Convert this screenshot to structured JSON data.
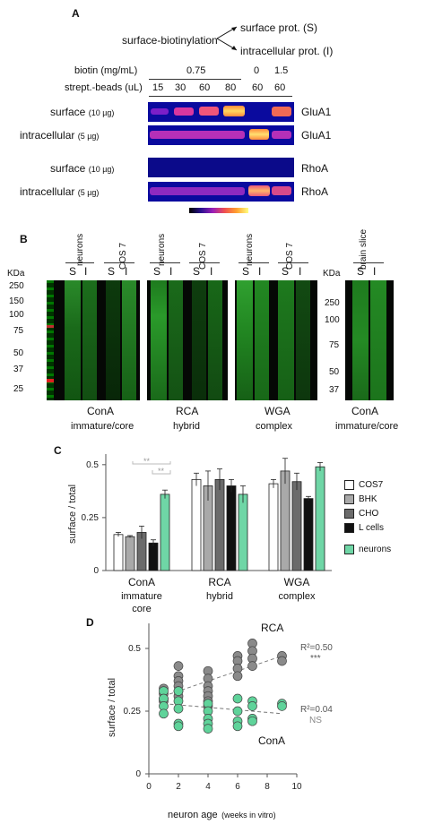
{
  "panelA": {
    "letter": "A",
    "scheme_left": "surface-biotinylation",
    "scheme_up": "surface prot. (S)",
    "scheme_down": "intracellular prot. (I)",
    "biotin_label": "biotin (mg/mL)",
    "biotin_values": [
      "0.75",
      "0",
      "1.5"
    ],
    "beads_label": "strept.-beads (uL)",
    "beads_values": [
      "15",
      "30",
      "60",
      "80",
      "60",
      "60"
    ],
    "rows": [
      {
        "label": "surface",
        "amount": "(10 µg)",
        "protein": "GluA1"
      },
      {
        "label": "intracellular",
        "amount": "(5 µg)",
        "protein": "GluA1"
      },
      {
        "label": "surface",
        "amount": "(10 µg)",
        "protein": "RhoA"
      },
      {
        "label": "intracellular",
        "amount": "(5 µg)",
        "protein": "RhoA"
      }
    ]
  },
  "panelB": {
    "letter": "B",
    "kda_label": "KDa",
    "left_markers": [
      "250",
      "150",
      "100",
      "75",
      "50",
      "37",
      "25"
    ],
    "right_markers": [
      "250",
      "100",
      "75",
      "50",
      "37"
    ],
    "headers": [
      "neurons",
      "COS 7",
      "neurons",
      "COS 7",
      "neurons",
      "COS 7",
      "brain slice"
    ],
    "lane_s": "S",
    "lane_i": "I",
    "groups": [
      {
        "lectin": "ConA",
        "type": "immature/core"
      },
      {
        "lectin": "RCA",
        "type": "hybrid"
      },
      {
        "lectin": "WGA",
        "type": "complex"
      },
      {
        "lectin": "ConA",
        "type": "immature/core"
      }
    ]
  },
  "panelC": {
    "letter": "C",
    "sig1": "**",
    "sig2": "**",
    "legend": [
      "COS7",
      "BHK",
      "CHO",
      "L cells",
      "neurons"
    ],
    "chart_data": {
      "type": "bar",
      "ylabel": "surface / total",
      "ylim": [
        0,
        0.55
      ],
      "yticks": [
        "0",
        "0.25",
        "0.5"
      ],
      "categories": [
        "ConA immature core",
        "RCA hybrid",
        "WGA complex"
      ],
      "category_line1": [
        "ConA",
        "RCA",
        "WGA"
      ],
      "category_line2": [
        "immature",
        "hybrid",
        "complex"
      ],
      "category_line3": [
        "core",
        "",
        ""
      ],
      "series": [
        {
          "name": "COS7",
          "color": "#ffffff",
          "values": [
            0.17,
            0.43,
            0.41
          ],
          "errors": [
            0.01,
            0.03,
            0.02
          ]
        },
        {
          "name": "BHK",
          "color": "#a9a9a9",
          "values": [
            0.16,
            0.4,
            0.47
          ],
          "errors": [
            0.005,
            0.07,
            0.06
          ]
        },
        {
          "name": "CHO",
          "color": "#6b6b6b",
          "values": [
            0.18,
            0.43,
            0.42
          ],
          "errors": [
            0.03,
            0.05,
            0.04
          ]
        },
        {
          "name": "L cells",
          "color": "#111111",
          "values": [
            0.13,
            0.4,
            0.34
          ],
          "errors": [
            0.015,
            0.03,
            0.01
          ]
        },
        {
          "name": "neurons",
          "color": "#6fd6a6",
          "values": [
            0.36,
            0.36,
            0.49
          ],
          "errors": [
            0.02,
            0.04,
            0.02
          ]
        }
      ]
    }
  },
  "panelD": {
    "letter": "D",
    "rca_label": "RCA",
    "cona_label": "ConA",
    "rca_r2": "R²=0.50",
    "rca_sig": "***",
    "cona_r2": "R²=0.04",
    "cona_sig": "NS",
    "xlabel_main": "neuron age",
    "xlabel_unit": "(weeks in vitro)",
    "chart_data": {
      "type": "scatter",
      "ylabel": "surface / total",
      "xlabel": "neuron age (weeks in vitro)",
      "xlim": [
        0,
        10
      ],
      "ylim": [
        0,
        0.6
      ],
      "xticks": [
        "0",
        "2",
        "4",
        "6",
        "8",
        "10"
      ],
      "yticks": [
        "0",
        "0.25",
        "0.5"
      ],
      "series": [
        {
          "name": "RCA",
          "color": "#8a8a8a",
          "points": [
            [
              1,
              0.34
            ],
            [
              1,
              0.32
            ],
            [
              1,
              0.3
            ],
            [
              1,
              0.29
            ],
            [
              2,
              0.43
            ],
            [
              2,
              0.39
            ],
            [
              2,
              0.37
            ],
            [
              2,
              0.35
            ],
            [
              2,
              0.33
            ],
            [
              2,
              0.31
            ],
            [
              4,
              0.41
            ],
            [
              4,
              0.38
            ],
            [
              4,
              0.35
            ],
            [
              4,
              0.33
            ],
            [
              4,
              0.31
            ],
            [
              4,
              0.29
            ],
            [
              4,
              0.27
            ],
            [
              6,
              0.47
            ],
            [
              6,
              0.45
            ],
            [
              6,
              0.42
            ],
            [
              6,
              0.39
            ],
            [
              7,
              0.52
            ],
            [
              7,
              0.49
            ],
            [
              7,
              0.46
            ],
            [
              7,
              0.43
            ],
            [
              9,
              0.47
            ],
            [
              9,
              0.45
            ]
          ],
          "trend": [
            [
              1,
              0.31
            ],
            [
              9,
              0.47
            ]
          ]
        },
        {
          "name": "ConA",
          "color": "#5fd39a",
          "points": [
            [
              1,
              0.33
            ],
            [
              1,
              0.3
            ],
            [
              1,
              0.27
            ],
            [
              1,
              0.24
            ],
            [
              2,
              0.33
            ],
            [
              2,
              0.29
            ],
            [
              2,
              0.26
            ],
            [
              2,
              0.2
            ],
            [
              2,
              0.19
            ],
            [
              4,
              0.28
            ],
            [
              4,
              0.25
            ],
            [
              4,
              0.22
            ],
            [
              4,
              0.2
            ],
            [
              4,
              0.18
            ],
            [
              6,
              0.3
            ],
            [
              6,
              0.25
            ],
            [
              6,
              0.21
            ],
            [
              6,
              0.19
            ],
            [
              7,
              0.29
            ],
            [
              7,
              0.27
            ],
            [
              7,
              0.22
            ],
            [
              7,
              0.21
            ],
            [
              9,
              0.28
            ],
            [
              9,
              0.27
            ]
          ],
          "trend": [
            [
              1,
              0.28
            ],
            [
              9,
              0.24
            ]
          ]
        }
      ]
    }
  }
}
